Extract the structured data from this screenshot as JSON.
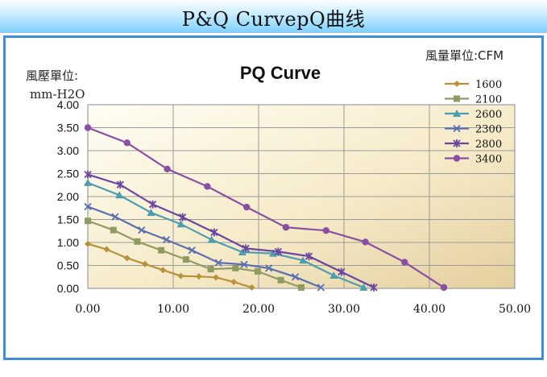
{
  "header": {
    "title": "P&Q CurvepQ曲线"
  },
  "chart_data": {
    "type": "line",
    "title": "PQ Curve",
    "ylabel_line1": "風壓單位:",
    "ylabel_line2": "mm-H2O",
    "xlabel": "風量單位:CFM",
    "xlim": [
      0,
      50
    ],
    "ylim": [
      0,
      4
    ],
    "xticks": [
      "0.00",
      "10.00",
      "20.00",
      "30.00",
      "40.00",
      "50.00"
    ],
    "yticks": [
      "0.00",
      "0.50",
      "1.00",
      "1.50",
      "2.00",
      "2.50",
      "3.00",
      "3.50",
      "4.00"
    ],
    "grid": true,
    "legend_position": "top-right",
    "series": [
      {
        "name": "1600",
        "color": "#b8923a",
        "marker": "diamond",
        "x": [
          0,
          2.2,
          4.6,
          6.7,
          8.8,
          10.9,
          13.0,
          15.0,
          17.1,
          19.2
        ],
        "y": [
          0.97,
          0.85,
          0.66,
          0.53,
          0.4,
          0.27,
          0.26,
          0.24,
          0.14,
          0.02
        ]
      },
      {
        "name": "2100",
        "color": "#8f9b62",
        "marker": "square",
        "x": [
          0,
          3.0,
          5.8,
          8.6,
          11.5,
          14.4,
          17.3,
          19.9,
          22.6,
          25.0
        ],
        "y": [
          1.47,
          1.27,
          1.02,
          0.83,
          0.63,
          0.42,
          0.44,
          0.37,
          0.18,
          0.02
        ]
      },
      {
        "name": "2600",
        "color": "#4d9db0",
        "marker": "triangle",
        "x": [
          0,
          3.7,
          7.4,
          10.9,
          14.5,
          18.1,
          21.7,
          25.2,
          28.8,
          32.3
        ],
        "y": [
          2.3,
          2.03,
          1.65,
          1.4,
          1.06,
          0.79,
          0.76,
          0.61,
          0.28,
          0.02
        ]
      },
      {
        "name": "2300",
        "color": "#5a6fae",
        "marker": "x",
        "x": [
          0,
          3.2,
          6.3,
          9.2,
          12.2,
          15.3,
          18.3,
          21.2,
          24.3,
          27.3
        ],
        "y": [
          1.78,
          1.56,
          1.27,
          1.06,
          0.83,
          0.56,
          0.52,
          0.44,
          0.25,
          0.02
        ]
      },
      {
        "name": "2800",
        "color": "#6b46a0",
        "marker": "star",
        "x": [
          0,
          3.8,
          7.6,
          11.1,
          14.8,
          18.5,
          22.3,
          25.9,
          29.7,
          33.5
        ],
        "y": [
          2.48,
          2.26,
          1.83,
          1.55,
          1.22,
          0.87,
          0.8,
          0.7,
          0.36,
          0.02
        ]
      },
      {
        "name": "3400",
        "color": "#8a4fa3",
        "marker": "circle",
        "x": [
          0,
          4.6,
          9.3,
          14.0,
          18.6,
          23.2,
          27.9,
          32.5,
          37.1,
          41.7
        ],
        "y": [
          3.5,
          3.17,
          2.6,
          2.22,
          1.77,
          1.33,
          1.26,
          1.01,
          0.57,
          0.02
        ]
      }
    ]
  }
}
